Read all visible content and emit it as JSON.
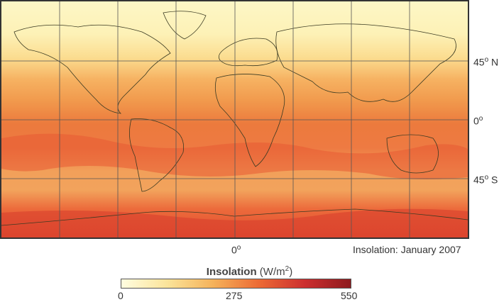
{
  "map": {
    "latitude_labels": [
      {
        "value": "45",
        "deg": "o",
        "hemi": " N"
      },
      {
        "value": "0",
        "deg": "o",
        "hemi": ""
      },
      {
        "value": "45",
        "deg": "o",
        "hemi": " S"
      }
    ],
    "longitude_label": {
      "value": "0",
      "deg": "o"
    },
    "caption": "Insolation: January 2007",
    "gridlines": true,
    "colormap": [
      "#fdf7c6",
      "#fbe49a",
      "#f8c36c",
      "#f39a4a",
      "#ec6a35",
      "#dc4730",
      "#c8302b"
    ]
  },
  "legend": {
    "title_bold": "Insolation",
    "title_unit": " (W/m",
    "title_sup": "2",
    "title_close": ")",
    "min_label": "0",
    "mid_label": "275",
    "max_label": "550",
    "range": [
      0,
      550
    ],
    "colors": [
      "#fffde0",
      "#fbe49a",
      "#f5b25a",
      "#ec6a35",
      "#cc2f2f",
      "#8e1b1e"
    ]
  }
}
